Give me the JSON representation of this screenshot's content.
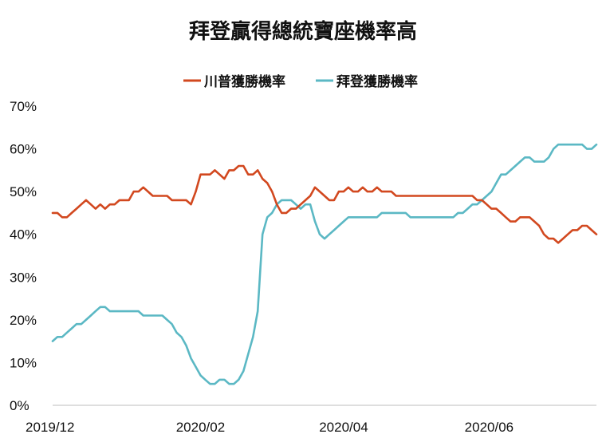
{
  "chart_data": {
    "type": "line",
    "title": "拜登贏得總統寶座機率高",
    "xlabel": "",
    "ylabel": "",
    "x_ticks": [
      "2019/12",
      "2020/02",
      "2020/04",
      "2020/06"
    ],
    "y_ticks": [
      "0%",
      "10%",
      "20%",
      "30%",
      "40%",
      "50%",
      "60%",
      "70%"
    ],
    "ylim": [
      0,
      70
    ],
    "grid": false,
    "legend_position": "top-center",
    "x": [
      "2019-12-01",
      "2019-12-03",
      "2019-12-05",
      "2019-12-07",
      "2019-12-09",
      "2019-12-11",
      "2019-12-13",
      "2019-12-15",
      "2019-12-17",
      "2019-12-19",
      "2019-12-21",
      "2019-12-23",
      "2019-12-25",
      "2019-12-27",
      "2019-12-29",
      "2019-12-31",
      "2020-01-02",
      "2020-01-04",
      "2020-01-06",
      "2020-01-08",
      "2020-01-10",
      "2020-01-12",
      "2020-01-14",
      "2020-01-16",
      "2020-01-18",
      "2020-01-20",
      "2020-01-22",
      "2020-01-24",
      "2020-01-26",
      "2020-01-28",
      "2020-01-30",
      "2020-02-01",
      "2020-02-03",
      "2020-02-05",
      "2020-02-07",
      "2020-02-09",
      "2020-02-11",
      "2020-02-13",
      "2020-02-15",
      "2020-02-17",
      "2020-02-19",
      "2020-02-21",
      "2020-02-23",
      "2020-02-25",
      "2020-02-27",
      "2020-02-29",
      "2020-03-02",
      "2020-03-04",
      "2020-03-06",
      "2020-03-08",
      "2020-03-10",
      "2020-03-12",
      "2020-03-14",
      "2020-03-16",
      "2020-03-18",
      "2020-03-20",
      "2020-03-22",
      "2020-03-24",
      "2020-03-26",
      "2020-03-28",
      "2020-03-30",
      "2020-04-01",
      "2020-04-03",
      "2020-04-05",
      "2020-04-07",
      "2020-04-09",
      "2020-04-11",
      "2020-04-13",
      "2020-04-15",
      "2020-04-17",
      "2020-04-19",
      "2020-04-21",
      "2020-04-23",
      "2020-04-25",
      "2020-04-27",
      "2020-04-29",
      "2020-05-01",
      "2020-05-03",
      "2020-05-05",
      "2020-05-07",
      "2020-05-09",
      "2020-05-11",
      "2020-05-13",
      "2020-05-15",
      "2020-05-17",
      "2020-05-19",
      "2020-05-21",
      "2020-05-23",
      "2020-05-25",
      "2020-05-27",
      "2020-05-29",
      "2020-05-31",
      "2020-06-02",
      "2020-06-04",
      "2020-06-06",
      "2020-06-08",
      "2020-06-10",
      "2020-06-12",
      "2020-06-14",
      "2020-06-16",
      "2020-06-18",
      "2020-06-20",
      "2020-06-22",
      "2020-06-24",
      "2020-06-26",
      "2020-06-28",
      "2020-06-30",
      "2020-07-02",
      "2020-07-04",
      "2020-07-06",
      "2020-07-08",
      "2020-07-10",
      "2020-07-12",
      "2020-07-14",
      "2020-07-16"
    ],
    "x_range": [
      "2019-12-01",
      "2020-07-16"
    ],
    "series": [
      {
        "name": "川普獲勝機率",
        "color": "#d2481f",
        "values": [
          45,
          45,
          44,
          44,
          45,
          46,
          47,
          48,
          47,
          46,
          47,
          46,
          47,
          47,
          48,
          48,
          48,
          50,
          50,
          51,
          50,
          49,
          49,
          49,
          49,
          48,
          48,
          48,
          48,
          47,
          50,
          54,
          54,
          54,
          55,
          54,
          53,
          55,
          55,
          56,
          56,
          54,
          54,
          55,
          53,
          52,
          50,
          47,
          45,
          45,
          46,
          46,
          47,
          48,
          49,
          51,
          50,
          49,
          48,
          48,
          50,
          50,
          51,
          50,
          50,
          51,
          50,
          50,
          51,
          50,
          50,
          50,
          49,
          49,
          49,
          49,
          49,
          49,
          49,
          49,
          49,
          49,
          49,
          49,
          49,
          49,
          49,
          49,
          49,
          48,
          48,
          47,
          46,
          46,
          45,
          44,
          43,
          43,
          44,
          44,
          44,
          43,
          42,
          40,
          39,
          39,
          38,
          39,
          40,
          41,
          41,
          42,
          42,
          41,
          40
        ]
      },
      {
        "name": "拜登獲勝機率",
        "color": "#5bb8c4",
        "values": [
          15,
          16,
          16,
          17,
          18,
          19,
          19,
          20,
          21,
          22,
          23,
          23,
          22,
          22,
          22,
          22,
          22,
          22,
          22,
          21,
          21,
          21,
          21,
          21,
          20,
          19,
          17,
          16,
          14,
          11,
          9,
          7,
          6,
          5,
          5,
          6,
          6,
          5,
          5,
          6,
          8,
          12,
          16,
          22,
          40,
          44,
          45,
          47,
          48,
          48,
          48,
          47,
          46,
          47,
          47,
          43,
          40,
          39,
          40,
          41,
          42,
          43,
          44,
          44,
          44,
          44,
          44,
          44,
          44,
          45,
          45,
          45,
          45,
          45,
          45,
          44,
          44,
          44,
          44,
          44,
          44,
          44,
          44,
          44,
          44,
          45,
          45,
          46,
          47,
          47,
          48,
          49,
          50,
          52,
          54,
          54,
          55,
          56,
          57,
          58,
          58,
          57,
          57,
          57,
          58,
          60,
          61,
          61,
          61,
          61,
          61,
          61,
          60,
          60,
          61
        ]
      }
    ]
  }
}
